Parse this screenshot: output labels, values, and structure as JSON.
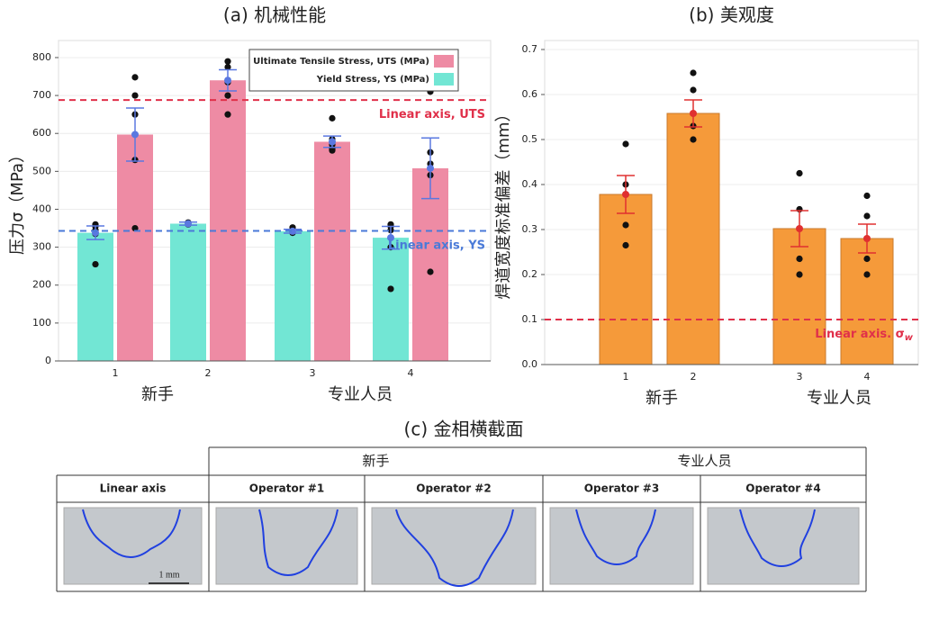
{
  "chart_data": [
    {
      "type": "bar",
      "title": "(a) 机械性能",
      "y_label": "压力σ（MPa）",
      "categories": [
        "1",
        "2",
        "3",
        "4"
      ],
      "group_labels": [
        "新手",
        "专业人员"
      ],
      "series": [
        {
          "name": "Ultimate Tensile Stress, UTS (MPa)",
          "color": "#ee8ba4",
          "values": [
            597,
            740,
            578,
            508
          ],
          "errors": [
            70,
            28,
            15,
            80
          ],
          "points": [
            [
              748,
              700,
              650,
              530,
              350
            ],
            [
              790,
              775,
              735,
              700,
              650
            ],
            [
              640,
              585,
              570,
              560,
              555
            ],
            [
              710,
              550,
              520,
              490,
              235
            ]
          ]
        },
        {
          "name": "Yield Stress, YS (MPa)",
          "color": "#72e6d4",
          "values": [
            338,
            362,
            342,
            325
          ],
          "errors": [
            18,
            4,
            5,
            30
          ],
          "points": [
            [
              360,
              355,
              345,
              335,
              255
            ],
            [
              365,
              362,
              360
            ],
            [
              352,
              345,
              340,
              338
            ],
            [
              360,
              355,
              345,
              300,
              190
            ]
          ]
        }
      ],
      "error_color": "#5a78e0",
      "point_color": "#111",
      "reference_lines": [
        {
          "value": 688,
          "label": "Linear axis, UTS",
          "color": "#e0304a"
        },
        {
          "value": 343,
          "label": "Linear axis, YS",
          "color": "#4a7ad8"
        }
      ],
      "ylim": [
        0,
        845
      ],
      "yticks": [
        0,
        100,
        200,
        300,
        400,
        500,
        600,
        700,
        800
      ],
      "grid": true,
      "legend": "upper right"
    },
    {
      "type": "bar",
      "title": "(b) 美观度",
      "y_label": "焊道宽度标准偏差（mm）",
      "categories": [
        "1",
        "2",
        "3",
        "4"
      ],
      "group_labels": [
        "新手",
        "专业人员"
      ],
      "series": [
        {
          "color": "#f59a3a",
          "values": [
            0.378,
            0.558,
            0.302,
            0.28
          ],
          "errors": [
            0.042,
            0.03,
            0.04,
            0.032
          ],
          "points": [
            [
              0.49,
              0.4,
              0.31,
              0.265
            ],
            [
              0.648,
              0.61,
              0.53,
              0.5
            ],
            [
              0.425,
              0.345,
              0.235,
              0.2
            ],
            [
              0.375,
              0.33,
              0.235,
              0.2
            ]
          ]
        }
      ],
      "error_color": "#e03030",
      "point_color": "#111",
      "reference_lines": [
        {
          "value": 0.1,
          "label": "Linear axis. σ",
          "label_sub": "w",
          "color": "#e0304a"
        }
      ],
      "ylim": [
        0,
        0.72
      ],
      "yticks": [
        {
          "value": 0,
          "label": "0.0"
        },
        0.1,
        0.2,
        0.3,
        0.4,
        0.5,
        0.6,
        0.7
      ],
      "grid": true
    }
  ],
  "figure_c": {
    "title": "(c) 金相横截面",
    "groups": [
      "新手",
      "专业人员"
    ],
    "columns": [
      "Linear axis",
      "Operator #1",
      "Operator #2",
      "Operator #3",
      "Operator #4"
    ],
    "scale_bar": "1 mm"
  }
}
